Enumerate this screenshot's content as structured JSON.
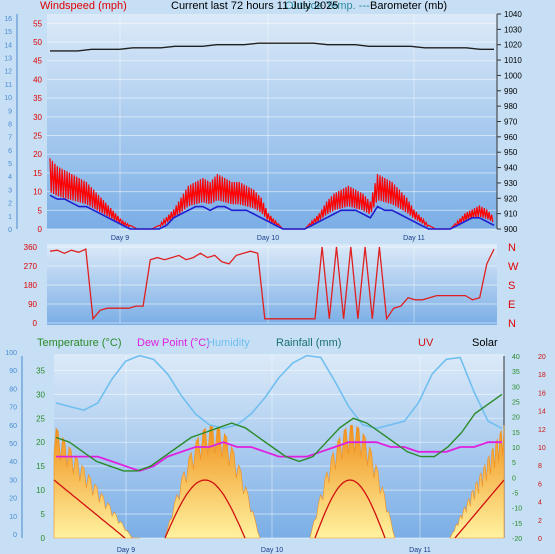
{
  "header": {
    "windspeed_label": "Windspeed (mph)",
    "title": "Current last 72 hours 11 July 2025",
    "overlap_text": "Outside Temp. ---",
    "barometer_label": "Barometer (mb)"
  },
  "legend2": {
    "temperature": "Temperature (°C)",
    "dewpoint": "Dew Point (°C)",
    "humidity": "Humidity",
    "rainfall": "Rainfall (mm)",
    "uv": "UV",
    "solar": "Solar"
  },
  "colors": {
    "wind_gust": "#ff0000",
    "wind_avg": "#2020d0",
    "barometer": "#202020",
    "direction": "#e02020",
    "temperature": "#2a8a2a",
    "dewpoint": "#e020e0",
    "humidity": "#70bff0",
    "rainfall": "#1a7070",
    "uv": "#d01010",
    "solar": "#f0a020"
  },
  "chart_data": [
    {
      "type": "line",
      "x_ticks": [
        "Day 9",
        "Day 10",
        "Day 11"
      ],
      "axes": {
        "windspeed_mph": [
          0,
          5,
          10,
          15,
          20,
          25,
          30,
          35,
          40,
          45,
          50,
          55
        ],
        "beaufort_left": [
          0,
          1,
          2,
          3,
          4,
          5,
          6,
          7,
          8,
          9,
          10,
          11,
          12,
          13,
          14,
          15,
          16
        ],
        "barometer_mb": [
          900,
          910,
          920,
          930,
          940,
          950,
          960,
          970,
          980,
          990,
          1000,
          1010,
          1020,
          1030,
          1040
        ]
      },
      "series": [
        {
          "name": "Wind gust",
          "values": [
            18,
            16,
            15,
            14,
            13,
            12,
            10,
            8,
            6,
            4,
            2,
            1,
            0,
            0,
            0,
            1,
            3,
            5,
            8,
            11,
            12,
            13,
            12,
            14,
            13,
            12,
            12,
            11,
            10,
            8,
            4,
            2,
            0,
            0,
            0,
            0,
            2,
            4,
            7,
            9,
            10,
            11,
            10,
            9,
            7,
            14,
            13,
            12,
            10,
            8,
            5,
            3,
            1,
            0,
            0,
            0,
            2,
            4,
            5,
            6,
            5,
            3
          ]
        },
        {
          "name": "Wind average",
          "values": [
            9,
            8,
            8,
            7,
            6,
            6,
            5,
            4,
            3,
            2,
            1,
            0,
            0,
            0,
            0,
            0,
            1,
            3,
            4,
            5,
            6,
            6,
            5,
            6,
            6,
            5,
            5,
            5,
            4,
            3,
            2,
            1,
            0,
            0,
            0,
            0,
            1,
            2,
            3,
            4,
            5,
            5,
            5,
            4,
            3,
            6,
            5,
            5,
            4,
            3,
            2,
            1,
            0,
            0,
            0,
            0,
            1,
            2,
            3,
            3,
            2,
            1
          ]
        },
        {
          "name": "Barometer",
          "values": [
            1016,
            1016,
            1016,
            1017,
            1017,
            1017,
            1018,
            1018,
            1018,
            1019,
            1019,
            1019,
            1020,
            1020,
            1020,
            1021,
            1021,
            1021,
            1021,
            1021,
            1020,
            1020,
            1020,
            1019,
            1019,
            1019,
            1019,
            1018,
            1018,
            1018,
            1018,
            1017,
            1017
          ]
        }
      ]
    },
    {
      "type": "line",
      "y_ticks_left": [
        0,
        90,
        180,
        270,
        360
      ],
      "y_ticks_right": [
        "N",
        "W",
        "S",
        "E",
        "N"
      ],
      "series": [
        {
          "name": "Wind direction",
          "values": [
            340,
            345,
            330,
            345,
            335,
            350,
            20,
            60,
            70,
            70,
            70,
            70,
            80,
            80,
            300,
            310,
            300,
            310,
            320,
            300,
            310,
            330,
            310,
            320,
            290,
            280,
            320,
            330,
            340,
            330,
            20,
            20,
            20,
            20,
            20,
            20,
            20,
            20,
            360,
            20,
            360,
            20,
            360,
            20,
            360,
            20,
            360,
            20,
            70,
            80,
            120,
            110,
            110,
            120,
            130,
            130,
            130,
            130,
            130,
            110,
            120,
            280,
            350
          ]
        }
      ]
    },
    {
      "type": "area",
      "axes": {
        "humidity_pct": [
          0,
          10,
          20,
          30,
          40,
          50,
          60,
          70,
          80,
          90,
          100
        ],
        "temperature_c": [
          0,
          5,
          10,
          15,
          20,
          25,
          30,
          35
        ],
        "rain_right_a": [
          -20,
          -15,
          -10,
          -5,
          0,
          5,
          10,
          15,
          20,
          25,
          30,
          35,
          40
        ],
        "uv_right_b": [
          0,
          2,
          4,
          6,
          8,
          10,
          12,
          14,
          16,
          18,
          20
        ]
      },
      "series": [
        {
          "name": "Temperature",
          "values": [
            21,
            20,
            18,
            16,
            15,
            14,
            14,
            15,
            17,
            19,
            21,
            22,
            23,
            24,
            23,
            21,
            19,
            17,
            16,
            17,
            20,
            23,
            25,
            24,
            22,
            20,
            18,
            17,
            17,
            19,
            22,
            26,
            28,
            30
          ]
        },
        {
          "name": "Dew Point",
          "values": [
            17,
            17,
            17,
            17,
            16,
            15,
            14,
            15,
            17,
            18,
            19,
            19,
            20,
            19,
            19,
            18,
            17,
            17,
            17,
            18,
            19,
            20,
            20,
            20,
            19,
            19,
            18,
            18,
            18,
            19,
            19,
            20,
            20
          ]
        },
        {
          "name": "Humidity",
          "values": [
            72,
            70,
            68,
            72,
            85,
            95,
            98,
            96,
            88,
            76,
            66,
            60,
            58,
            60,
            66,
            75,
            86,
            94,
            98,
            97,
            84,
            70,
            60,
            58,
            60,
            62,
            72,
            88,
            96,
            97,
            78,
            62,
            58
          ]
        },
        {
          "name": "Solar",
          "values": [
            0,
            2,
            4,
            6,
            8,
            10,
            12,
            14,
            16,
            18,
            20
          ]
        },
        {
          "name": "UV",
          "values": [
            0,
            1,
            2,
            3,
            4,
            5
          ]
        }
      ]
    }
  ]
}
